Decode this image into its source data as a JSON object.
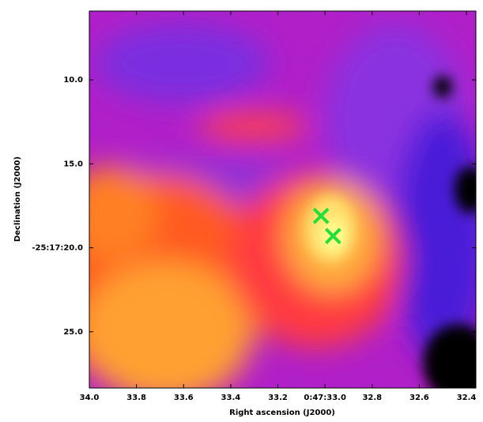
{
  "chart_data": {
    "type": "scatter",
    "xlabel": "Right ascension (J2000)",
    "ylabel": "Declination (J2000)",
    "xlim": [
      34.0,
      32.36
    ],
    "ylim": [
      28.35,
      5.9
    ],
    "xticks": [
      {
        "value": 34.0,
        "label": "34.0"
      },
      {
        "value": 33.8,
        "label": "33.8"
      },
      {
        "value": 33.6,
        "label": "33.6"
      },
      {
        "value": 33.4,
        "label": "33.4"
      },
      {
        "value": 33.2,
        "label": "33.2"
      },
      {
        "value": 33.0,
        "label": "0:47:33.0"
      },
      {
        "value": 32.8,
        "label": "32.8"
      },
      {
        "value": 32.6,
        "label": "32.6"
      },
      {
        "value": 32.4,
        "label": "32.4"
      }
    ],
    "yticks": [
      {
        "value": 10,
        "label": "10.0"
      },
      {
        "value": 15,
        "label": "15.0"
      },
      {
        "value": 20,
        "label": "-25:17:20.0"
      },
      {
        "value": 25,
        "label": "25.0"
      }
    ],
    "series": [
      {
        "color": "#22e03a",
        "marker": "x",
        "x": [
          33.017,
          32.966
        ],
        "y": [
          18.1,
          19.3
        ]
      }
    ]
  }
}
